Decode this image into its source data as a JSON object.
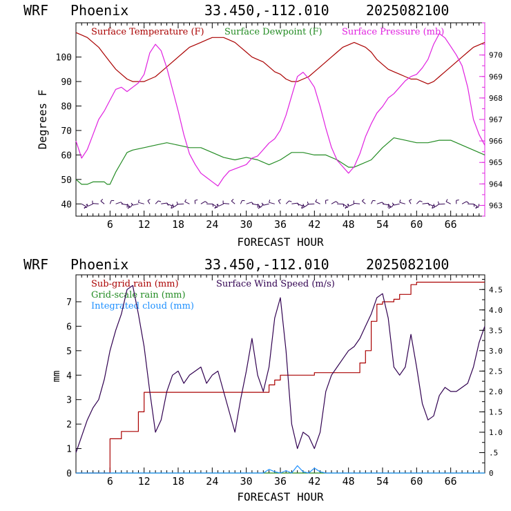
{
  "chart_data": [
    {
      "type": "line",
      "header": {
        "model": "WRF",
        "location": "Phoenix",
        "coords": "33.450,-112.010",
        "run": "2025082100"
      },
      "xlabel": "FORECAST HOUR",
      "ylabel": "Degrees F",
      "xlim": [
        0,
        72
      ],
      "ylim": [
        35,
        114
      ],
      "y2lim": [
        962.5,
        971.5
      ],
      "xticks": [
        "6",
        "12",
        "18",
        "24",
        "30",
        "36",
        "42",
        "48",
        "54",
        "60",
        "66"
      ],
      "yticks": [
        "40",
        "50",
        "60",
        "70",
        "80",
        "90",
        "100"
      ],
      "y2ticks": [
        "963",
        "964",
        "965",
        "966",
        "967",
        "968",
        "969",
        "970"
      ],
      "colors": {
        "temperature": "#aa0000",
        "dewpoint": "#228b22",
        "pressure": "#e020e0",
        "wind": "#300050"
      },
      "legend": [
        "Surface Temperature (F)",
        "Surface Dewpoint (F)",
        "Surface Pressure (mb)"
      ],
      "series": [
        {
          "name": "Surface Temperature (F)",
          "axis": "left",
          "x": [
            0,
            1,
            2,
            3,
            4,
            5,
            6,
            7,
            8,
            9,
            10,
            11,
            12,
            13,
            14,
            15,
            16,
            17,
            18,
            19,
            20,
            21,
            22,
            23,
            24,
            25,
            26,
            27,
            28,
            29,
            30,
            31,
            32,
            33,
            34,
            35,
            36,
            37,
            38,
            39,
            40,
            41,
            42,
            43,
            44,
            45,
            46,
            47,
            48,
            49,
            50,
            51,
            52,
            53,
            54,
            55,
            56,
            57,
            58,
            59,
            60,
            61,
            62,
            63,
            64,
            65,
            66,
            67,
            68,
            69,
            70,
            71,
            72
          ],
          "values": [
            110,
            109,
            108,
            106,
            104,
            101,
            98,
            95,
            93,
            91,
            90,
            90,
            90,
            91,
            92,
            94,
            96,
            98,
            100,
            102,
            104,
            105,
            106,
            107,
            108,
            108,
            108,
            107,
            106,
            104,
            102,
            100,
            99,
            98,
            96,
            94,
            93,
            91,
            90,
            90,
            91,
            92,
            94,
            96,
            98,
            100,
            102,
            104,
            105,
            106,
            105,
            104,
            102,
            99,
            97,
            95,
            94,
            93,
            92,
            91,
            91,
            90,
            89,
            90,
            92,
            94,
            96,
            98,
            100,
            102,
            104,
            105,
            106
          ]
        },
        {
          "name": "Surface Dewpoint (F)",
          "axis": "left",
          "x": [
            0,
            1,
            2,
            3,
            4,
            5,
            5.5,
            6,
            7,
            8,
            9,
            10,
            12,
            14,
            16,
            18,
            20,
            22,
            24,
            26,
            28,
            30,
            32,
            34,
            36,
            38,
            40,
            42,
            44,
            46,
            48,
            49,
            50,
            52,
            54,
            56,
            58,
            60,
            62,
            64,
            66,
            68,
            70,
            72
          ],
          "values": [
            50,
            48,
            48,
            49,
            49,
            49,
            48,
            48,
            53,
            57,
            61,
            62,
            63,
            64,
            65,
            64,
            63,
            63,
            61,
            59,
            58,
            59,
            58,
            56,
            58,
            61,
            61,
            60,
            60,
            58,
            55,
            55,
            56,
            58,
            63,
            67,
            66,
            65,
            65,
            66,
            66,
            64,
            62,
            60
          ]
        },
        {
          "name": "Surface Pressure (mb)",
          "axis": "right",
          "x": [
            0,
            1,
            2,
            3,
            4,
            5,
            6,
            7,
            8,
            9,
            10,
            11,
            12,
            13,
            14,
            15,
            16,
            17,
            18,
            19,
            20,
            21,
            22,
            23,
            24,
            25,
            26,
            27,
            28,
            29,
            30,
            31,
            32,
            33,
            34,
            35,
            36,
            37,
            38,
            39,
            40,
            41,
            42,
            43,
            44,
            45,
            46,
            47,
            48,
            49,
            50,
            51,
            52,
            53,
            54,
            55,
            56,
            57,
            58,
            59,
            60,
            61,
            62,
            63,
            64,
            65,
            66,
            67,
            68,
            69,
            70,
            71,
            72
          ],
          "values": [
            966,
            965.2,
            965.6,
            966.3,
            967,
            967.4,
            967.9,
            968.4,
            968.5,
            968.3,
            968.5,
            968.7,
            969.1,
            970.1,
            970.5,
            970.2,
            969.4,
            968.4,
            967.4,
            966.3,
            965.4,
            964.9,
            964.5,
            964.3,
            964.1,
            963.9,
            964.3,
            964.6,
            964.7,
            964.8,
            964.9,
            965.2,
            965.3,
            965.6,
            965.9,
            966.1,
            966.5,
            967.2,
            968.1,
            969,
            969.2,
            968.9,
            968.5,
            967.6,
            966.6,
            965.7,
            965.1,
            964.8,
            964.5,
            964.8,
            965.4,
            966.2,
            966.8,
            967.3,
            967.6,
            968,
            968.2,
            968.5,
            968.8,
            969,
            969.1,
            969.4,
            969.8,
            970.5,
            971,
            970.8,
            970.4,
            970,
            969.5,
            968.5,
            967,
            966.3,
            965.8
          ]
        }
      ],
      "wind_barbs_level": 40
    },
    {
      "type": "line",
      "header": {
        "model": "WRF",
        "location": "Phoenix",
        "coords": "33.450,-112.010",
        "run": "2025082100"
      },
      "xlabel": "FORECAST HOUR",
      "ylabel": "mm",
      "xlim": [
        0,
        72
      ],
      "ylim": [
        0,
        8.1
      ],
      "y2lim": [
        0,
        4.86
      ],
      "xticks": [
        "6",
        "12",
        "18",
        "24",
        "30",
        "36",
        "42",
        "48",
        "54",
        "60",
        "66"
      ],
      "yticks": [
        "0",
        "1",
        "2",
        "3",
        "4",
        "5",
        "6",
        "7"
      ],
      "y2ticks": [
        "0",
        ".5",
        "1.0",
        "1.5",
        "2.0",
        "2.5",
        "3.0",
        "3.5",
        "4.0",
        "4.5"
      ],
      "legend": [
        "Sub-grid rain (mm)",
        "Grid-scale rain (mm)",
        "Integrated cloud (mm)",
        "Surface Wind Speed (m/s)"
      ],
      "series": [
        {
          "name": "Sub-grid rain (mm)",
          "axis": "left",
          "color": "#aa0000",
          "x": [
            0,
            5,
            6,
            7,
            8,
            9,
            10,
            11,
            12,
            14,
            18,
            24,
            30,
            33,
            34,
            35,
            36,
            38,
            42,
            48,
            50,
            51,
            52,
            53,
            54,
            56,
            57,
            58,
            59,
            60,
            66,
            72
          ],
          "values": [
            0,
            0,
            1.4,
            1.4,
            1.7,
            1.7,
            1.7,
            2.5,
            3.3,
            3.3,
            3.3,
            3.3,
            3.3,
            3.3,
            3.6,
            3.8,
            4,
            4,
            4.1,
            4.1,
            4.5,
            5,
            6.2,
            6.9,
            7,
            7.1,
            7.3,
            7.3,
            7.7,
            7.8,
            7.8,
            7.8
          ]
        },
        {
          "name": "Grid-scale rain (mm)",
          "axis": "left",
          "color": "#228b22",
          "x": [
            0,
            72
          ],
          "values": [
            0,
            0
          ]
        },
        {
          "name": "Integrated cloud (mm)",
          "axis": "left",
          "color": "#1e90ff",
          "x": [
            0,
            33,
            34,
            35,
            36,
            37,
            38,
            39,
            40,
            41,
            42,
            43,
            44,
            72
          ],
          "values": [
            0,
            0,
            0.15,
            0.05,
            0,
            0.1,
            0,
            0.3,
            0.05,
            0,
            0.2,
            0.05,
            0,
            0
          ]
        },
        {
          "name": "Surface Wind Speed (m/s)",
          "axis": "right",
          "color": "#300050",
          "x": [
            0,
            1,
            2,
            3,
            4,
            5,
            6,
            7,
            8,
            9,
            10,
            11,
            12,
            13,
            14,
            15,
            16,
            17,
            18,
            19,
            20,
            21,
            22,
            23,
            24,
            25,
            26,
            27,
            28,
            29,
            30,
            31,
            32,
            33,
            34,
            35,
            36,
            37,
            38,
            39,
            40,
            41,
            42,
            43,
            44,
            45,
            46,
            47,
            48,
            49,
            50,
            51,
            52,
            53,
            54,
            55,
            56,
            57,
            58,
            59,
            60,
            61,
            62,
            63,
            64,
            65,
            66,
            67,
            68,
            69,
            70,
            71,
            72
          ],
          "values": [
            0.5,
            0.9,
            1.3,
            1.6,
            1.8,
            2.3,
            3.0,
            3.5,
            3.9,
            4.5,
            4.6,
            3.9,
            3.1,
            2.0,
            1.0,
            1.3,
            2.0,
            2.4,
            2.5,
            2.2,
            2.4,
            2.5,
            2.6,
            2.2,
            2.4,
            2.5,
            2.0,
            1.5,
            1.0,
            1.8,
            2.5,
            3.3,
            2.4,
            2.0,
            2.6,
            3.8,
            4.3,
            3.0,
            1.2,
            0.6,
            1.0,
            0.9,
            0.6,
            1.0,
            2.0,
            2.4,
            2.6,
            2.8,
            3.0,
            3.1,
            3.3,
            3.6,
            3.9,
            4.3,
            4.4,
            3.8,
            2.6,
            2.4,
            2.6,
            3.4,
            2.6,
            1.7,
            1.3,
            1.4,
            1.9,
            2.1,
            2.0,
            2.0,
            2.1,
            2.2,
            2.6,
            3.2,
            3.6
          ]
        }
      ]
    }
  ]
}
